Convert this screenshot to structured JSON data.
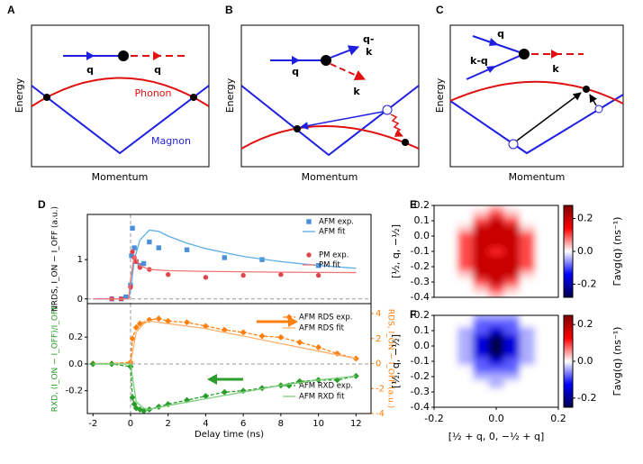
{
  "diagrams": {
    "A": {
      "label": "A",
      "y_label": "Energy",
      "x_label": "Momentum",
      "in": "q",
      "out": "q",
      "phonon": "Phonon",
      "magnon": "Magnon"
    },
    "B": {
      "label": "B",
      "y_label": "Energy",
      "x_label": "Momentum",
      "in": "q",
      "out_magnon": [
        "q-",
        "k"
      ],
      "out_phonon": "k"
    },
    "C": {
      "label": "C",
      "y_label": "Energy",
      "x_label": "Momentum",
      "in_1": "q",
      "in_2": "k-q",
      "out": "k"
    }
  },
  "chart_data": [
    {
      "type": "line",
      "panel_label": "D",
      "ylabel": "NRDS, I_ON − I_OFF (a.u.)",
      "xlim": [
        -2.3,
        12.8
      ],
      "ylim": [
        -0.12,
        2.15
      ],
      "yticks": [
        0,
        1
      ],
      "vline": 0,
      "hline": 0,
      "series": [
        {
          "name": "AFM exp.",
          "color": "#4a90d9",
          "marker": "square",
          "linestyle": "none",
          "x": [
            -1,
            -0.5,
            -0.25,
            0,
            0.05,
            0.1,
            0.2,
            0.3,
            0.5,
            0.7,
            1,
            1.5,
            3,
            5,
            7,
            10
          ],
          "values": [
            0,
            0,
            0.05,
            0.35,
            1.1,
            1.8,
            1.3,
            0.95,
            0.85,
            0.9,
            1.45,
            1.3,
            1.25,
            1.05,
            1.0,
            0.85
          ]
        },
        {
          "name": "AFM fit",
          "color": "#5aaee8",
          "linestyle": "solid",
          "x": [
            -2,
            -0.1,
            0,
            0.2,
            0.5,
            1,
            1.5,
            2,
            3,
            4,
            6,
            8,
            10,
            12
          ],
          "values": [
            0,
            0,
            0.2,
            1.0,
            1.5,
            1.75,
            1.72,
            1.6,
            1.42,
            1.28,
            1.08,
            0.95,
            0.85,
            0.78
          ]
        },
        {
          "name": "PM exp.",
          "color": "#e0454b",
          "marker": "circle",
          "linestyle": "none",
          "x": [
            -1,
            -0.5,
            0,
            0.1,
            0.2,
            0.3,
            0.5,
            1,
            2,
            4,
            6,
            8,
            10
          ],
          "values": [
            0,
            0,
            0.3,
            1.2,
            1.05,
            0.95,
            0.8,
            0.75,
            0.62,
            0.55,
            0.6,
            0.62,
            0.6
          ]
        },
        {
          "name": "PM fit",
          "color": "#f07575",
          "linestyle": "solid",
          "x": [
            -2,
            -0.1,
            0,
            0.2,
            0.5,
            1,
            2,
            4,
            8,
            12
          ],
          "values": [
            0,
            0,
            0.5,
            1.1,
            0.85,
            0.75,
            0.72,
            0.7,
            0.68,
            0.67
          ]
        }
      ]
    },
    {
      "type": "line",
      "xlabel": "Delay time (ns)",
      "ylabel": "RXD, (I_ON − I_OFF)/I_OFF",
      "ylabel_color": "#2a9d2a",
      "y2label": "RDS, I_ON − I_OFF (a.u.)",
      "y2label_color": "#ff7f0e",
      "xlim": [
        -2.3,
        12.8
      ],
      "xticks": [
        -2,
        0,
        2,
        4,
        6,
        8,
        10,
        12
      ],
      "ylim": [
        -0.37,
        0.45
      ],
      "yticks": [
        -0.2,
        {
          "value": 0,
          "label": "0.0"
        },
        0.2
      ],
      "y2lim": [
        -4,
        4.8
      ],
      "y2ticks": [
        -4,
        -2,
        0,
        2,
        4
      ],
      "vline": 0,
      "hline": 0,
      "series": [
        {
          "name": "AFM RDS exp.",
          "color": "#ff7f0e",
          "marker": "diamond",
          "linestyle": "dashed",
          "axis": "y2",
          "x": [
            -2,
            -1,
            0,
            0.1,
            0.3,
            0.5,
            1,
            1.5,
            2,
            3,
            4,
            5,
            6,
            7,
            8,
            9,
            10,
            11,
            12
          ],
          "values": [
            0,
            0,
            0.1,
            2.0,
            2.9,
            3.2,
            3.5,
            3.6,
            3.4,
            3.3,
            3.0,
            2.7,
            2.5,
            2.2,
            2.1,
            1.7,
            1.3,
            0.8,
            0.4
          ]
        },
        {
          "name": "AFM RDS fit",
          "color": "#ffb070",
          "linestyle": "solid",
          "axis": "y2",
          "x": [
            -2,
            0,
            0.3,
            0.7,
            1,
            2,
            4,
            6,
            8,
            10,
            12
          ],
          "values": [
            0,
            0,
            2.5,
            3.2,
            3.4,
            3.2,
            2.8,
            2.2,
            1.6,
            1.0,
            0.4
          ]
        },
        {
          "name": "AFM RXD exp.",
          "color": "#2a9d2a",
          "marker": "diamond",
          "linestyle": "dashed",
          "x": [
            -2,
            -1,
            0,
            0.1,
            0.2,
            0.3,
            0.5,
            0.7,
            1,
            1.5,
            2,
            3,
            4,
            5,
            6,
            7,
            8,
            9,
            10,
            11,
            12
          ],
          "values": [
            0,
            0,
            -0.02,
            -0.25,
            -0.3,
            -0.33,
            -0.34,
            -0.35,
            -0.34,
            -0.32,
            -0.3,
            -0.27,
            -0.24,
            -0.21,
            -0.2,
            -0.18,
            -0.16,
            -0.13,
            -0.12,
            -0.12,
            -0.09
          ]
        },
        {
          "name": "AFM RXD fit",
          "color": "#7ccf7c",
          "linestyle": "solid",
          "x": [
            -2,
            0,
            0.3,
            0.7,
            1,
            2,
            4,
            6,
            8,
            10,
            12
          ],
          "values": [
            0,
            0,
            -0.28,
            -0.33,
            -0.34,
            -0.31,
            -0.26,
            -0.21,
            -0.16,
            -0.12,
            -0.09
          ]
        }
      ]
    },
    {
      "type": "heatmap",
      "panel_label": "E",
      "ylabel": "[½, q, −½]",
      "colorbar_label": "Γavg(q) (ns⁻¹)",
      "colormap": "seismic",
      "xlim": [
        -0.2,
        0.2
      ],
      "ylim": [
        -0.4,
        0.2
      ],
      "yticks": [
        0.2,
        0.1,
        {
          "value": 0,
          "label": "0.0"
        },
        -0.1,
        -0.2,
        -0.3,
        -0.4
      ],
      "zlim": [
        -0.28,
        0.28
      ],
      "zticks": [
        0.2,
        {
          "value": 0,
          "label": "0.0"
        },
        -0.2
      ],
      "x": [
        -0.2,
        -0.15,
        -0.1,
        -0.05,
        0,
        0.05,
        0.1,
        0.15,
        0.2
      ],
      "y": [
        0.2,
        0.15,
        0.1,
        0.05,
        0,
        -0.05,
        -0.1,
        -0.15,
        -0.2,
        -0.25,
        -0.3,
        -0.35,
        -0.4
      ],
      "z": [
        [
          0,
          0,
          0,
          0,
          0.03,
          0,
          0,
          0,
          0
        ],
        [
          0,
          0,
          0,
          0.03,
          0.1,
          0.03,
          0,
          0,
          0
        ],
        [
          0,
          0,
          0,
          0.1,
          0.2,
          0.1,
          0,
          0,
          0
        ],
        [
          0,
          0,
          0.03,
          0.2,
          0.2,
          0.2,
          0.03,
          0,
          0
        ],
        [
          0,
          0,
          0.1,
          0.2,
          0.2,
          0.2,
          0.1,
          0,
          0
        ],
        [
          0,
          0,
          0.1,
          0.2,
          0.2,
          0.2,
          0.1,
          0,
          0
        ],
        [
          0,
          0,
          0.1,
          0.2,
          0.12,
          0.2,
          0.1,
          0,
          0
        ],
        [
          0,
          0,
          0.1,
          0.2,
          0.2,
          0.2,
          0.1,
          0,
          0
        ],
        [
          0,
          0,
          0.1,
          0.2,
          0.2,
          0.2,
          0.1,
          0,
          0
        ],
        [
          0,
          0,
          0.03,
          0.2,
          0.2,
          0.2,
          0.03,
          0,
          0
        ],
        [
          0,
          0,
          0,
          0.1,
          0.2,
          0.1,
          0,
          0,
          0
        ],
        [
          0,
          0,
          0,
          0.03,
          0.1,
          0.03,
          0,
          0,
          0
        ],
        [
          0,
          0,
          0,
          0,
          0.03,
          0,
          0,
          0,
          0
        ]
      ]
    },
    {
      "type": "heatmap",
      "panel_label": "F",
      "ylabel": "[½, q, −½]",
      "xlabel": "[½ + q, 0, −½ + q]",
      "colorbar_label": "Γavg(q) (ns⁻¹)",
      "colormap": "seismic",
      "xlim": [
        -0.2,
        0.2
      ],
      "ylim": [
        -0.4,
        0.2
      ],
      "xticks": [
        -0.2,
        {
          "value": 0,
          "label": "0.0"
        },
        0.2
      ],
      "yticks": [
        0.2,
        0.1,
        {
          "value": 0,
          "label": "0.0"
        },
        -0.1,
        -0.2,
        -0.3,
        -0.4
      ],
      "zlim": [
        -0.25,
        0.25
      ],
      "zticks": [
        0.2,
        {
          "value": 0,
          "label": "0.0"
        },
        -0.2
      ],
      "x": [
        -0.2,
        -0.15,
        -0.1,
        -0.05,
        0,
        0.05,
        0.1,
        0.15,
        0.2
      ],
      "y": [
        0.2,
        0.15,
        0.1,
        0.05,
        0,
        -0.05,
        -0.1,
        -0.15,
        -0.2,
        -0.25,
        -0.3,
        -0.35,
        -0.4
      ],
      "z": [
        [
          0,
          0,
          0,
          -0.04,
          -0.04,
          -0.04,
          0,
          0,
          0
        ],
        [
          0,
          0,
          0,
          -0.08,
          -0.08,
          -0.08,
          0,
          0,
          0
        ],
        [
          0,
          0,
          -0.04,
          -0.08,
          -0.15,
          -0.08,
          -0.04,
          0,
          0
        ],
        [
          0,
          0,
          -0.04,
          -0.15,
          -0.25,
          -0.15,
          -0.04,
          0,
          0
        ],
        [
          0,
          0,
          -0.04,
          -0.15,
          -0.25,
          -0.15,
          -0.04,
          0,
          0
        ],
        [
          0,
          0,
          -0.04,
          -0.15,
          -0.25,
          -0.15,
          -0.04,
          0,
          0
        ],
        [
          0,
          0,
          -0.04,
          -0.08,
          -0.15,
          -0.08,
          -0.04,
          0,
          0
        ],
        [
          0,
          0,
          0,
          -0.08,
          -0.08,
          -0.08,
          0,
          0,
          0
        ],
        [
          0,
          0,
          0,
          -0.04,
          -0.04,
          -0.04,
          0,
          0,
          0
        ],
        [
          0,
          0,
          0,
          0,
          -0.04,
          0,
          0,
          0,
          0
        ],
        [
          0,
          0,
          0,
          0,
          0,
          0,
          0,
          0,
          0
        ],
        [
          0,
          0,
          0,
          0,
          0,
          0,
          0,
          0,
          0
        ],
        [
          0,
          0,
          0,
          0,
          0,
          0,
          0,
          0,
          0
        ]
      ]
    }
  ]
}
